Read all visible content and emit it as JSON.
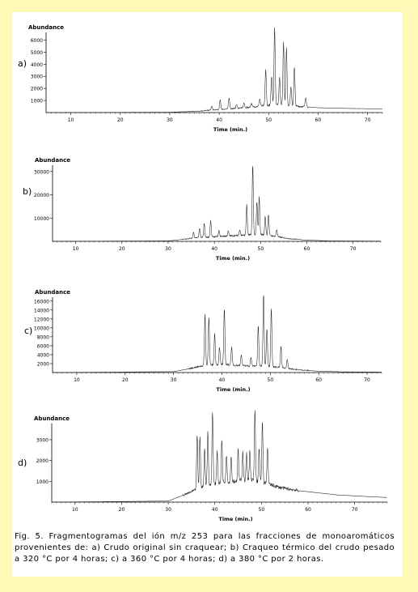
{
  "chart_data": [
    {
      "type": "line",
      "panel_label": "a)",
      "ylabel": "Abundance",
      "xlabel": "Time (min.)",
      "xlim": [
        5,
        73
      ],
      "ylim": [
        0,
        6500
      ],
      "x_ticks": [
        10,
        20,
        30,
        40,
        50,
        60,
        70
      ],
      "y_ticks": [
        1000,
        2000,
        3000,
        4000,
        5000,
        6000
      ],
      "baseline": [
        [
          5,
          0
        ],
        [
          30,
          30
        ],
        [
          35,
          100
        ],
        [
          40,
          250
        ],
        [
          45,
          400
        ],
        [
          50,
          600
        ],
        [
          52,
          700
        ],
        [
          55,
          550
        ],
        [
          60,
          400
        ],
        [
          65,
          350
        ],
        [
          73,
          300
        ]
      ],
      "peaks": [
        [
          38.5,
          300
        ],
        [
          40.2,
          800
        ],
        [
          42.0,
          900
        ],
        [
          43.5,
          300
        ],
        [
          45.0,
          400
        ],
        [
          46.5,
          300
        ],
        [
          48.2,
          600
        ],
        [
          49.4,
          3000
        ],
        [
          50.6,
          2400
        ],
        [
          51.2,
          6400
        ],
        [
          52.2,
          2200
        ],
        [
          53.0,
          5200
        ],
        [
          53.6,
          4700
        ],
        [
          54.5,
          1500
        ],
        [
          55.2,
          3200
        ],
        [
          57.5,
          800
        ]
      ]
    },
    {
      "type": "line",
      "panel_label": "b)",
      "ylabel": "Abundance",
      "xlabel": "Time (min.)",
      "xlim": [
        5,
        76
      ],
      "ylim": [
        0,
        32000
      ],
      "x_ticks": [
        10,
        20,
        30,
        40,
        50,
        60,
        70
      ],
      "y_ticks": [
        10000,
        20000,
        30000
      ],
      "baseline": [
        [
          5,
          0
        ],
        [
          30,
          200
        ],
        [
          33,
          800
        ],
        [
          36,
          1500
        ],
        [
          40,
          2000
        ],
        [
          45,
          2500
        ],
        [
          50,
          3000
        ],
        [
          53,
          2200
        ],
        [
          56,
          1200
        ],
        [
          60,
          500
        ],
        [
          65,
          200
        ],
        [
          76,
          100
        ]
      ],
      "peaks": [
        [
          35.5,
          2500
        ],
        [
          36.8,
          4000
        ],
        [
          37.8,
          6000
        ],
        [
          39.2,
          7000
        ],
        [
          41.0,
          2500
        ],
        [
          43.0,
          2000
        ],
        [
          45.5,
          2500
        ],
        [
          47.0,
          13000
        ],
        [
          48.3,
          30000
        ],
        [
          49.2,
          14000
        ],
        [
          49.7,
          16000
        ],
        [
          51.0,
          8000
        ],
        [
          51.7,
          9000
        ],
        [
          53.5,
          3000
        ]
      ]
    },
    {
      "type": "line",
      "panel_label": "c)",
      "ylabel": "Abundance",
      "xlabel": "Time (min.)",
      "xlim": [
        5,
        73
      ],
      "ylim": [
        0,
        16500
      ],
      "x_ticks": [
        10,
        20,
        30,
        40,
        50,
        60,
        70
      ],
      "y_ticks": [
        2000,
        4000,
        6000,
        8000,
        10000,
        12000,
        14000,
        16000
      ],
      "baseline": [
        [
          5,
          0
        ],
        [
          30,
          200
        ],
        [
          33,
          800
        ],
        [
          36,
          1500
        ],
        [
          40,
          1800
        ],
        [
          45,
          1500
        ],
        [
          50,
          1400
        ],
        [
          53,
          1000
        ],
        [
          56,
          600
        ],
        [
          60,
          300
        ],
        [
          65,
          150
        ],
        [
          73,
          100
        ]
      ],
      "peaks": [
        [
          36.5,
          11500
        ],
        [
          37.3,
          11000
        ],
        [
          38.5,
          7000
        ],
        [
          39.5,
          4000
        ],
        [
          40.5,
          12500
        ],
        [
          42.0,
          4000
        ],
        [
          44.0,
          2500
        ],
        [
          46.0,
          2000
        ],
        [
          47.5,
          9000
        ],
        [
          48.6,
          16000
        ],
        [
          49.3,
          8500
        ],
        [
          50.2,
          13000
        ],
        [
          52.2,
          4800
        ],
        [
          53.5,
          2000
        ]
      ]
    },
    {
      "type": "line",
      "panel_label": "d)",
      "ylabel": "Abundance",
      "xlabel": "Time (min.)",
      "xlim": [
        5,
        77
      ],
      "ylim": [
        0,
        3700
      ],
      "x_ticks": [
        10,
        20,
        30,
        40,
        50,
        60,
        70
      ],
      "y_ticks": [
        1000,
        2000,
        3000
      ],
      "baseline": [
        [
          5,
          0
        ],
        [
          30,
          50
        ],
        [
          34,
          400
        ],
        [
          37,
          700
        ],
        [
          40,
          900
        ],
        [
          44,
          1000
        ],
        [
          48,
          1050
        ],
        [
          51,
          900
        ],
        [
          54,
          700
        ],
        [
          58,
          550
        ],
        [
          62,
          450
        ],
        [
          66,
          350
        ],
        [
          70,
          300
        ],
        [
          77,
          220
        ]
      ],
      "peaks": [
        [
          36.2,
          2600
        ],
        [
          36.8,
          2500
        ],
        [
          37.8,
          1800
        ],
        [
          38.5,
          2600
        ],
        [
          39.5,
          3500
        ],
        [
          40.5,
          1500
        ],
        [
          41.5,
          2100
        ],
        [
          42.5,
          1300
        ],
        [
          43.5,
          1200
        ],
        [
          45.0,
          1500
        ],
        [
          46.0,
          1400
        ],
        [
          46.8,
          1300
        ],
        [
          47.5,
          1400
        ],
        [
          48.6,
          3400
        ],
        [
          49.5,
          1600
        ],
        [
          50.2,
          2900
        ],
        [
          51.3,
          1800
        ]
      ]
    }
  ],
  "caption": "Fig. 5. Fragmentogramas del ión m/z 253 para las fracciones de monoaromáticos provenientes de:  a) Crudo original sin craquear; b) Craqueo térmico del crudo pesado a 320 °C por 4 horas;   c) a 360 °C por 4 horas; d) a 380 °C por 2 horas."
}
